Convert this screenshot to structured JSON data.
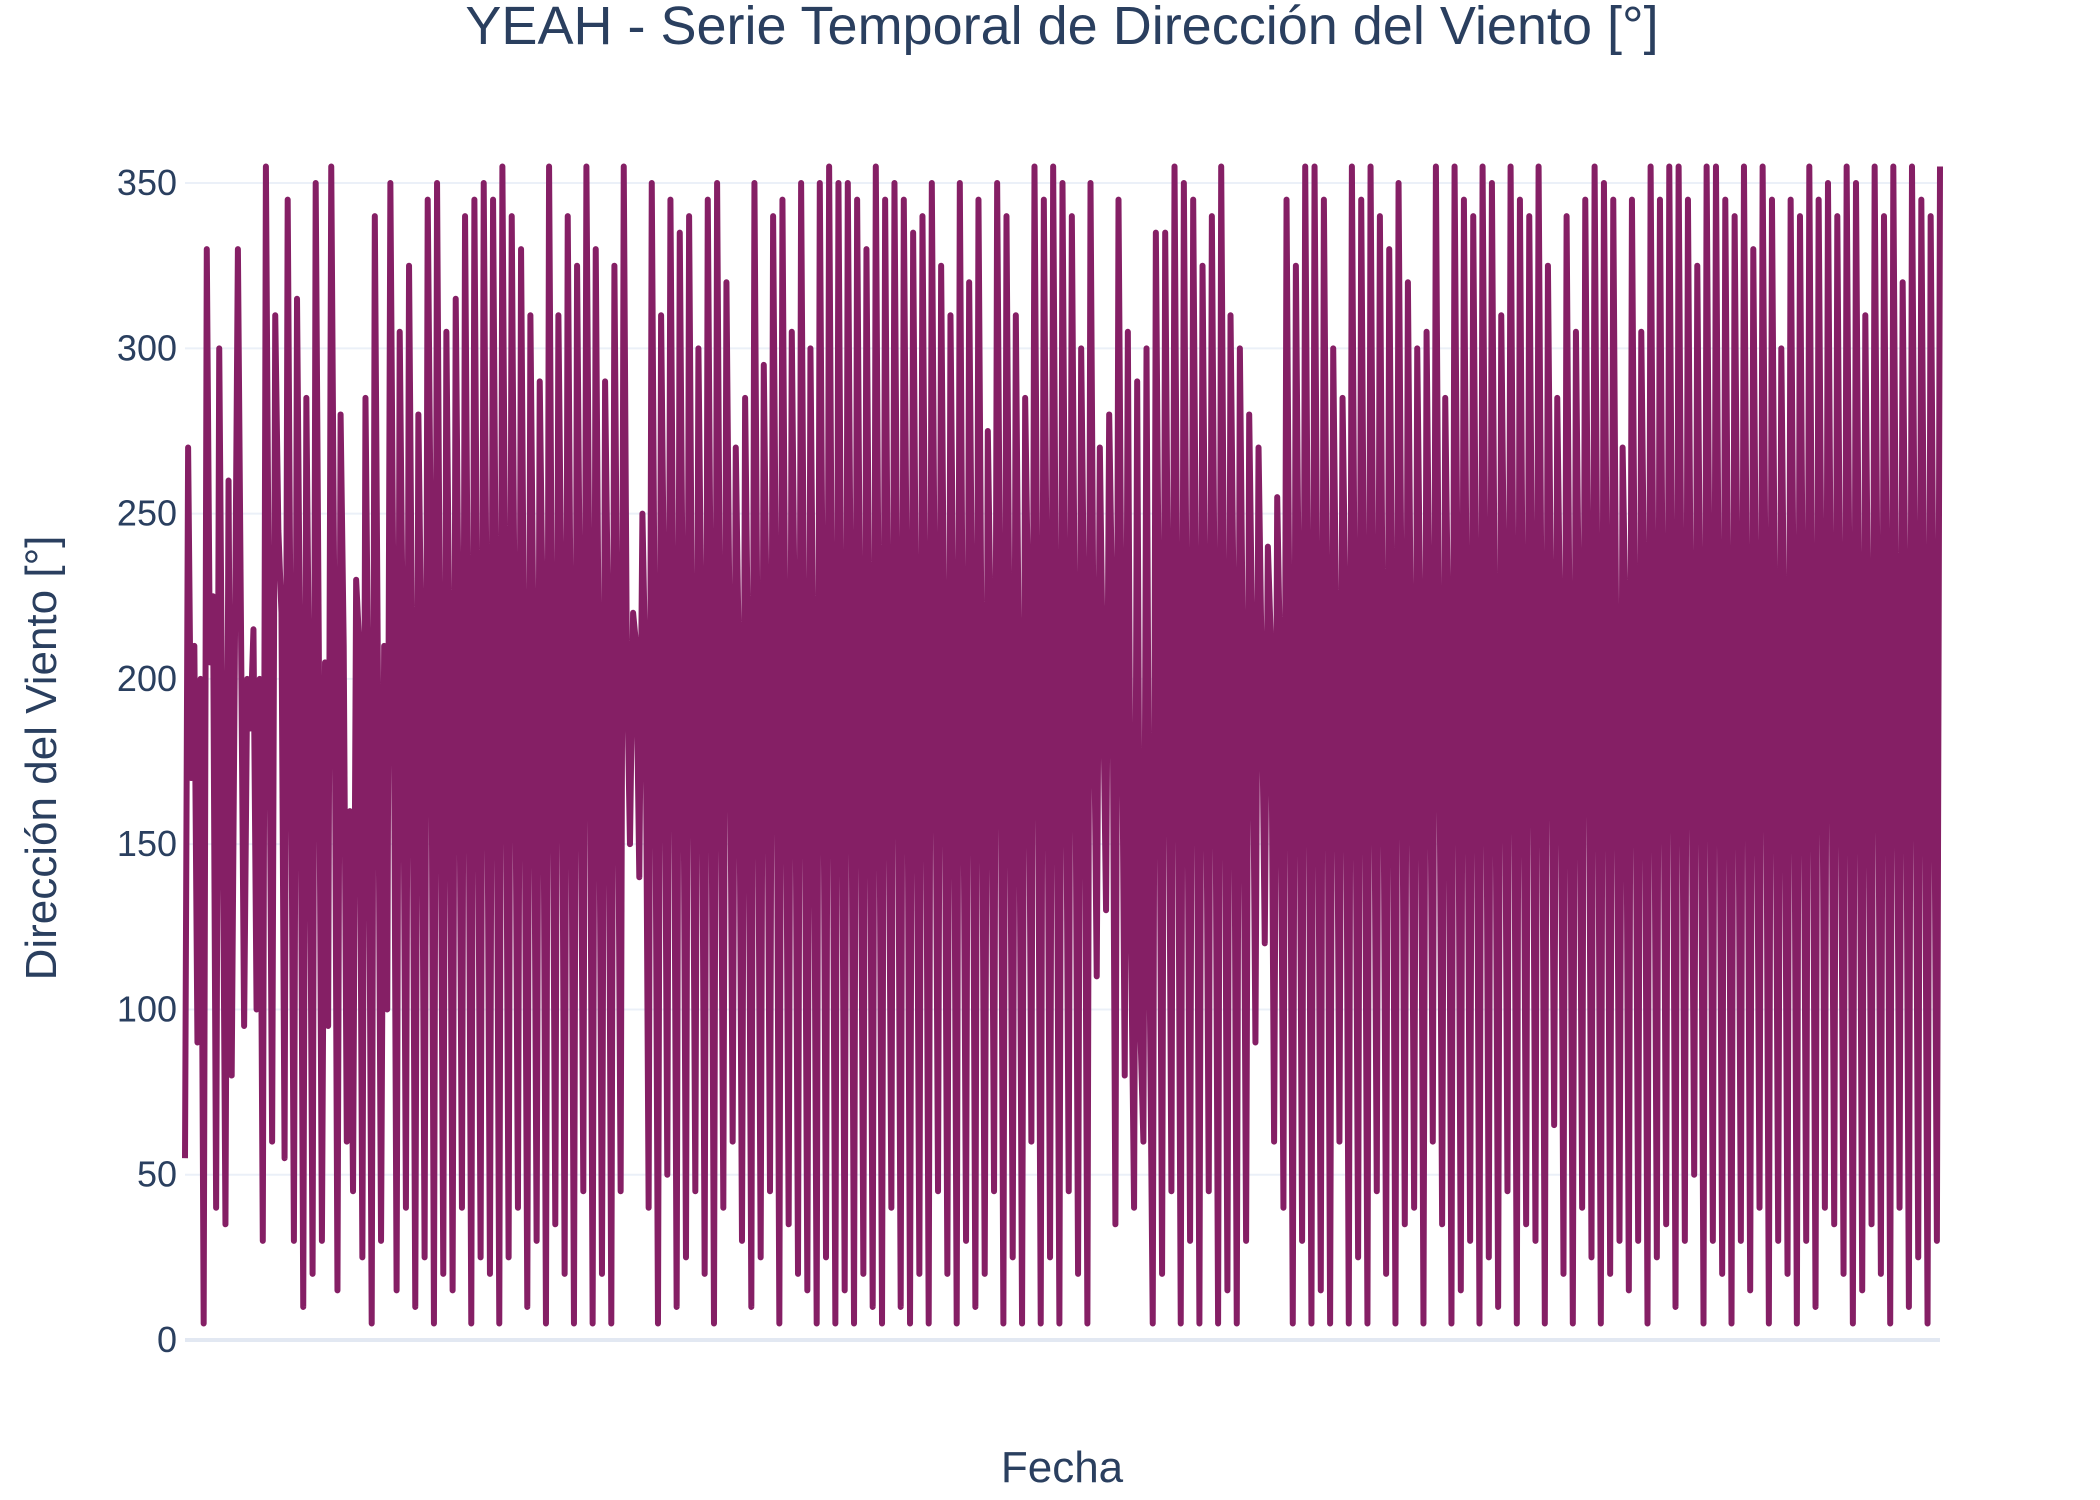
{
  "chart_data": {
    "type": "line",
    "title": "YEAH - Serie Temporal de Dirección del Viento [°]",
    "xlabel": "Fecha",
    "ylabel": "Dirección del Viento [°]",
    "ylim": [
      0,
      360
    ],
    "yticks": [
      0,
      50,
      100,
      150,
      200,
      250,
      300,
      350
    ],
    "ytick_labels": [
      "0",
      "50",
      "100",
      "150",
      "200",
      "250",
      "300",
      "350"
    ],
    "xticks": [],
    "grid": true,
    "legend": "none",
    "colors": {
      "line": "#851f65",
      "text": "#2a3f5f",
      "grid": "#ebf0f8",
      "background": "#ffffff"
    },
    "series": [
      {
        "values": [
          55,
          270,
          170,
          210,
          90,
          200,
          5,
          330,
          205,
          225,
          40,
          300,
          180,
          35,
          260,
          80,
          205,
          330,
          215,
          95,
          200,
          185,
          215,
          100,
          200,
          30,
          355,
          210,
          60,
          310,
          245,
          220,
          55,
          345,
          200,
          30,
          315,
          205,
          10,
          285,
          185,
          20,
          350,
          210,
          30,
          205,
          95,
          355,
          220,
          15,
          280,
          210,
          60,
          160,
          45,
          230,
          210,
          25,
          285,
          185,
          5,
          340,
          200,
          30,
          210,
          100,
          350,
          220,
          15,
          305,
          210,
          40,
          325,
          205,
          10,
          280,
          205,
          25,
          345,
          240,
          5,
          350,
          200,
          20,
          305,
          205,
          15,
          315,
          210,
          40,
          340,
          205,
          5,
          345,
          200,
          25,
          350,
          205,
          20,
          345,
          210,
          5,
          355,
          215,
          25,
          340,
          205,
          40,
          330,
          200,
          10,
          310,
          210,
          30,
          290,
          215,
          5,
          355,
          205,
          35,
          310,
          220,
          20,
          340,
          205,
          5,
          325,
          210,
          45,
          355,
          220,
          5,
          330,
          200,
          20,
          290,
          215,
          5,
          325,
          200,
          45,
          355,
          205,
          150,
          220,
          210,
          140,
          250,
          200,
          40,
          350,
          205,
          5,
          310,
          220,
          50,
          345,
          210,
          10,
          335,
          215,
          25,
          340,
          205,
          45,
          300,
          210,
          20,
          345,
          215,
          5,
          350,
          205,
          40,
          320,
          215,
          60,
          270,
          205,
          30,
          285,
          200,
          10,
          350,
          205,
          25,
          295,
          210,
          45,
          340,
          215,
          5,
          345,
          200,
          35,
          305,
          210,
          20,
          350,
          205,
          15,
          300,
          195,
          5,
          350,
          210,
          25,
          355,
          205,
          5,
          350,
          200,
          15,
          350,
          215,
          5,
          345,
          205,
          20,
          330,
          200,
          10,
          355,
          205,
          5,
          345,
          200,
          40,
          350,
          210,
          10,
          345,
          220,
          5,
          335,
          205,
          20,
          340,
          210,
          5,
          350,
          215,
          45,
          325,
          205,
          20,
          310,
          210,
          5,
          350,
          200,
          30,
          320,
          215,
          10,
          345,
          205,
          20,
          275,
          210,
          45,
          350,
          215,
          5,
          340,
          205,
          25,
          310,
          200,
          5,
          285,
          220,
          60,
          355,
          210,
          5,
          345,
          215,
          25,
          355,
          200,
          5,
          350,
          205,
          45,
          340,
          210,
          20,
          300,
          215,
          5,
          350,
          205,
          110,
          270,
          200,
          130,
          280,
          220,
          35,
          345,
          210,
          80,
          305,
          125,
          40,
          290,
          95,
          60,
          300,
          110,
          5,
          335,
          215,
          20,
          335,
          210,
          45,
          355,
          205,
          5,
          350,
          200,
          30,
          345,
          215,
          5,
          325,
          210,
          45,
          340,
          205,
          5,
          355,
          210,
          15,
          310,
          220,
          5,
          300,
          205,
          30,
          280,
          210,
          90,
          270,
          205,
          120,
          240,
          210,
          60,
          255,
          200,
          40,
          345,
          205,
          5,
          325,
          215,
          30,
          355,
          210,
          5,
          355,
          205,
          15,
          345,
          220,
          5,
          300,
          210,
          60,
          285,
          215,
          5,
          355,
          205,
          25,
          345,
          210,
          5,
          355,
          205,
          45,
          340,
          200,
          20,
          330,
          210,
          5,
          350,
          215,
          35,
          320,
          205,
          40,
          300,
          215,
          5,
          305,
          210,
          60,
          355,
          205,
          35,
          285,
          210,
          5,
          355,
          220,
          15,
          345,
          205,
          30,
          340,
          210,
          5,
          355,
          215,
          25,
          350,
          205,
          10,
          310,
          220,
          45,
          355,
          210,
          5,
          345,
          205,
          35,
          340,
          215,
          30,
          355,
          210,
          5,
          325,
          220,
          65,
          285,
          210,
          20,
          340,
          205,
          5,
          305,
          215,
          40,
          345,
          220,
          25,
          355,
          210,
          5,
          350,
          215,
          20,
          345,
          205,
          30,
          270,
          215,
          15,
          345,
          210,
          30,
          305,
          220,
          5,
          355,
          210,
          25,
          345,
          205,
          35,
          355,
          215,
          10,
          355,
          210,
          30,
          345,
          205,
          50,
          325,
          210,
          5,
          355,
          215,
          30,
          355,
          205,
          20,
          345,
          210,
          5,
          340,
          215,
          30,
          355,
          210,
          15,
          330,
          205,
          40,
          355,
          215,
          5,
          345,
          210,
          30,
          300,
          205,
          20,
          345,
          215,
          5,
          340,
          210,
          30,
          355,
          205,
          10,
          345,
          215,
          40,
          350,
          210,
          35,
          340,
          205,
          20,
          355,
          210,
          5,
          350,
          215,
          15,
          310,
          205,
          35,
          355,
          210,
          20,
          340,
          215,
          5,
          355,
          205,
          40,
          320,
          210,
          10,
          355,
          215,
          25,
          345,
          210,
          5,
          340,
          205,
          30,
          355
        ],
        "color": "#851f65"
      }
    ]
  }
}
